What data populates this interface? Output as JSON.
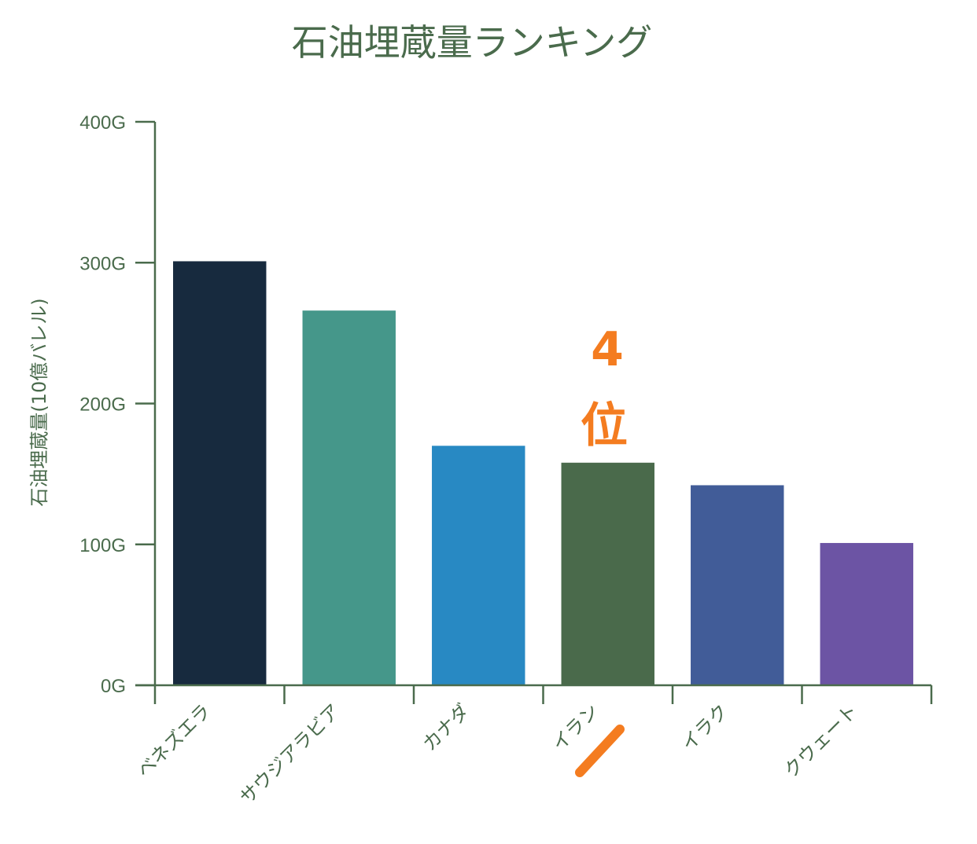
{
  "chart_data": {
    "type": "bar",
    "title": "石油埋蔵量ランキング",
    "ylabel": "石油埋蔵量(10億バレル)",
    "xlabel": "",
    "ylim": [
      0,
      400
    ],
    "yticks": [
      0,
      100,
      200,
      300,
      400
    ],
    "ytick_labels": [
      "0G",
      "100G",
      "200G",
      "300G",
      "400G"
    ],
    "categories": [
      "ベネズエラ",
      "サウジアラビア",
      "カナダ",
      "イラン",
      "イラク",
      "クウェート"
    ],
    "values": [
      301,
      266,
      170,
      158,
      142,
      101
    ],
    "colors": [
      "#172a3e",
      "#45978a",
      "#2889c3",
      "#4a6a4b",
      "#415c98",
      "#6c54a4"
    ],
    "grid": false,
    "legend": "none",
    "annotations": [
      {
        "text": "4",
        "category": "イラン",
        "color": "#f47c20"
      },
      {
        "text": "位",
        "category": "イラン",
        "color": "#f47c20"
      }
    ]
  },
  "theme": {
    "axis_color": "#4a6b4c",
    "annotation_color": "#f47c20"
  }
}
